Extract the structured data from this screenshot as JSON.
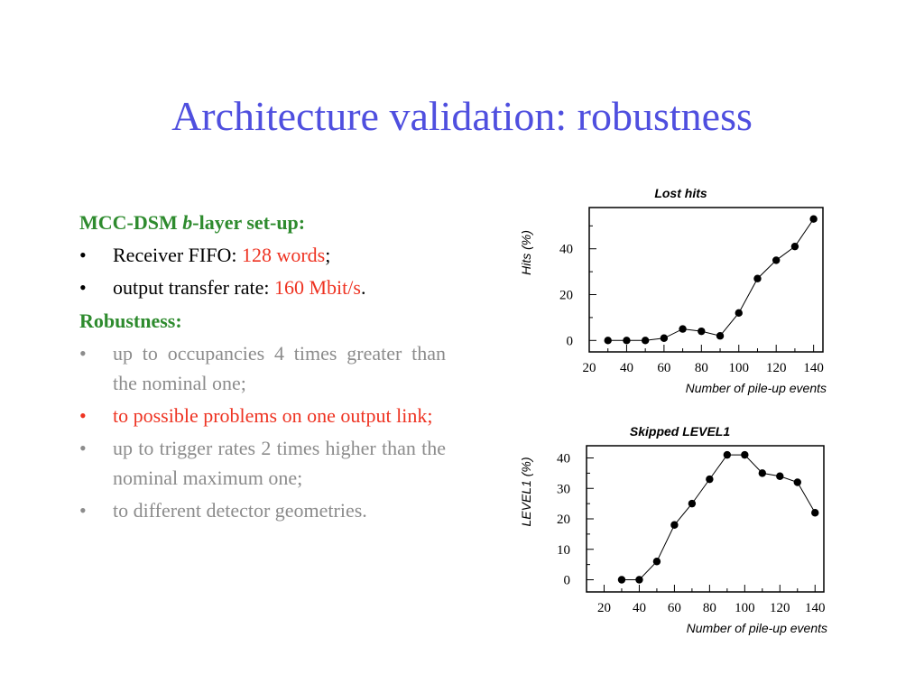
{
  "slide": {
    "title": "Architecture validation: robustness",
    "section1": {
      "heading_prefix": "MCC-DSM ",
      "heading_italic": "b",
      "heading_suffix": "-layer set-up:",
      "items": [
        {
          "bullet": "•",
          "text": "Receiver FIFO: ",
          "value": "128 words",
          "end": ";"
        },
        {
          "bullet": "•",
          "text": "output transfer rate: ",
          "value": "160 Mbit/s",
          "end": "."
        }
      ]
    },
    "section2": {
      "heading": "Robustness:",
      "items": [
        {
          "bullet": "•",
          "text": "up to occupancies 4 times greater than the nominal one;"
        },
        {
          "bullet": "•",
          "text": "to possible problems on one output link;"
        },
        {
          "bullet": "•",
          "text": "up to trigger rates 2 times higher than the nominal maximum one;"
        },
        {
          "bullet": "•",
          "text": "to different detector geometries."
        }
      ]
    }
  },
  "colors": {
    "title": "#4f4fdf",
    "heading": "#2e8b2e",
    "highlight": "#ee3322",
    "muted": "#8c8c8c"
  },
  "chart_data": [
    {
      "type": "line",
      "title": "Lost hits",
      "xlabel": "Number of pile-up events",
      "ylabel": "Hits (%)",
      "xlim": [
        20,
        145
      ],
      "ylim": [
        -5,
        58
      ],
      "xticks": [
        20,
        40,
        60,
        80,
        100,
        120,
        140
      ],
      "yticks": [
        0,
        20,
        40
      ],
      "x": [
        30,
        40,
        50,
        60,
        70,
        80,
        90,
        100,
        110,
        120,
        130,
        140
      ],
      "y": [
        0,
        0,
        0,
        1,
        5,
        4,
        2,
        12,
        27,
        35,
        41,
        53
      ]
    },
    {
      "type": "line",
      "title": "Skipped LEVEL1",
      "xlabel": "Number of pile-up events",
      "ylabel": "LEVEL1 (%)",
      "xlim": [
        10,
        145
      ],
      "ylim": [
        -4,
        44
      ],
      "xticks": [
        20,
        40,
        60,
        80,
        100,
        120,
        140
      ],
      "yticks": [
        0,
        10,
        20,
        30,
        40
      ],
      "x": [
        30,
        40,
        50,
        60,
        70,
        80,
        90,
        100,
        110,
        120,
        130,
        140
      ],
      "y": [
        0,
        0,
        6,
        18,
        25,
        33,
        41,
        41,
        35,
        34,
        32,
        22
      ]
    }
  ]
}
